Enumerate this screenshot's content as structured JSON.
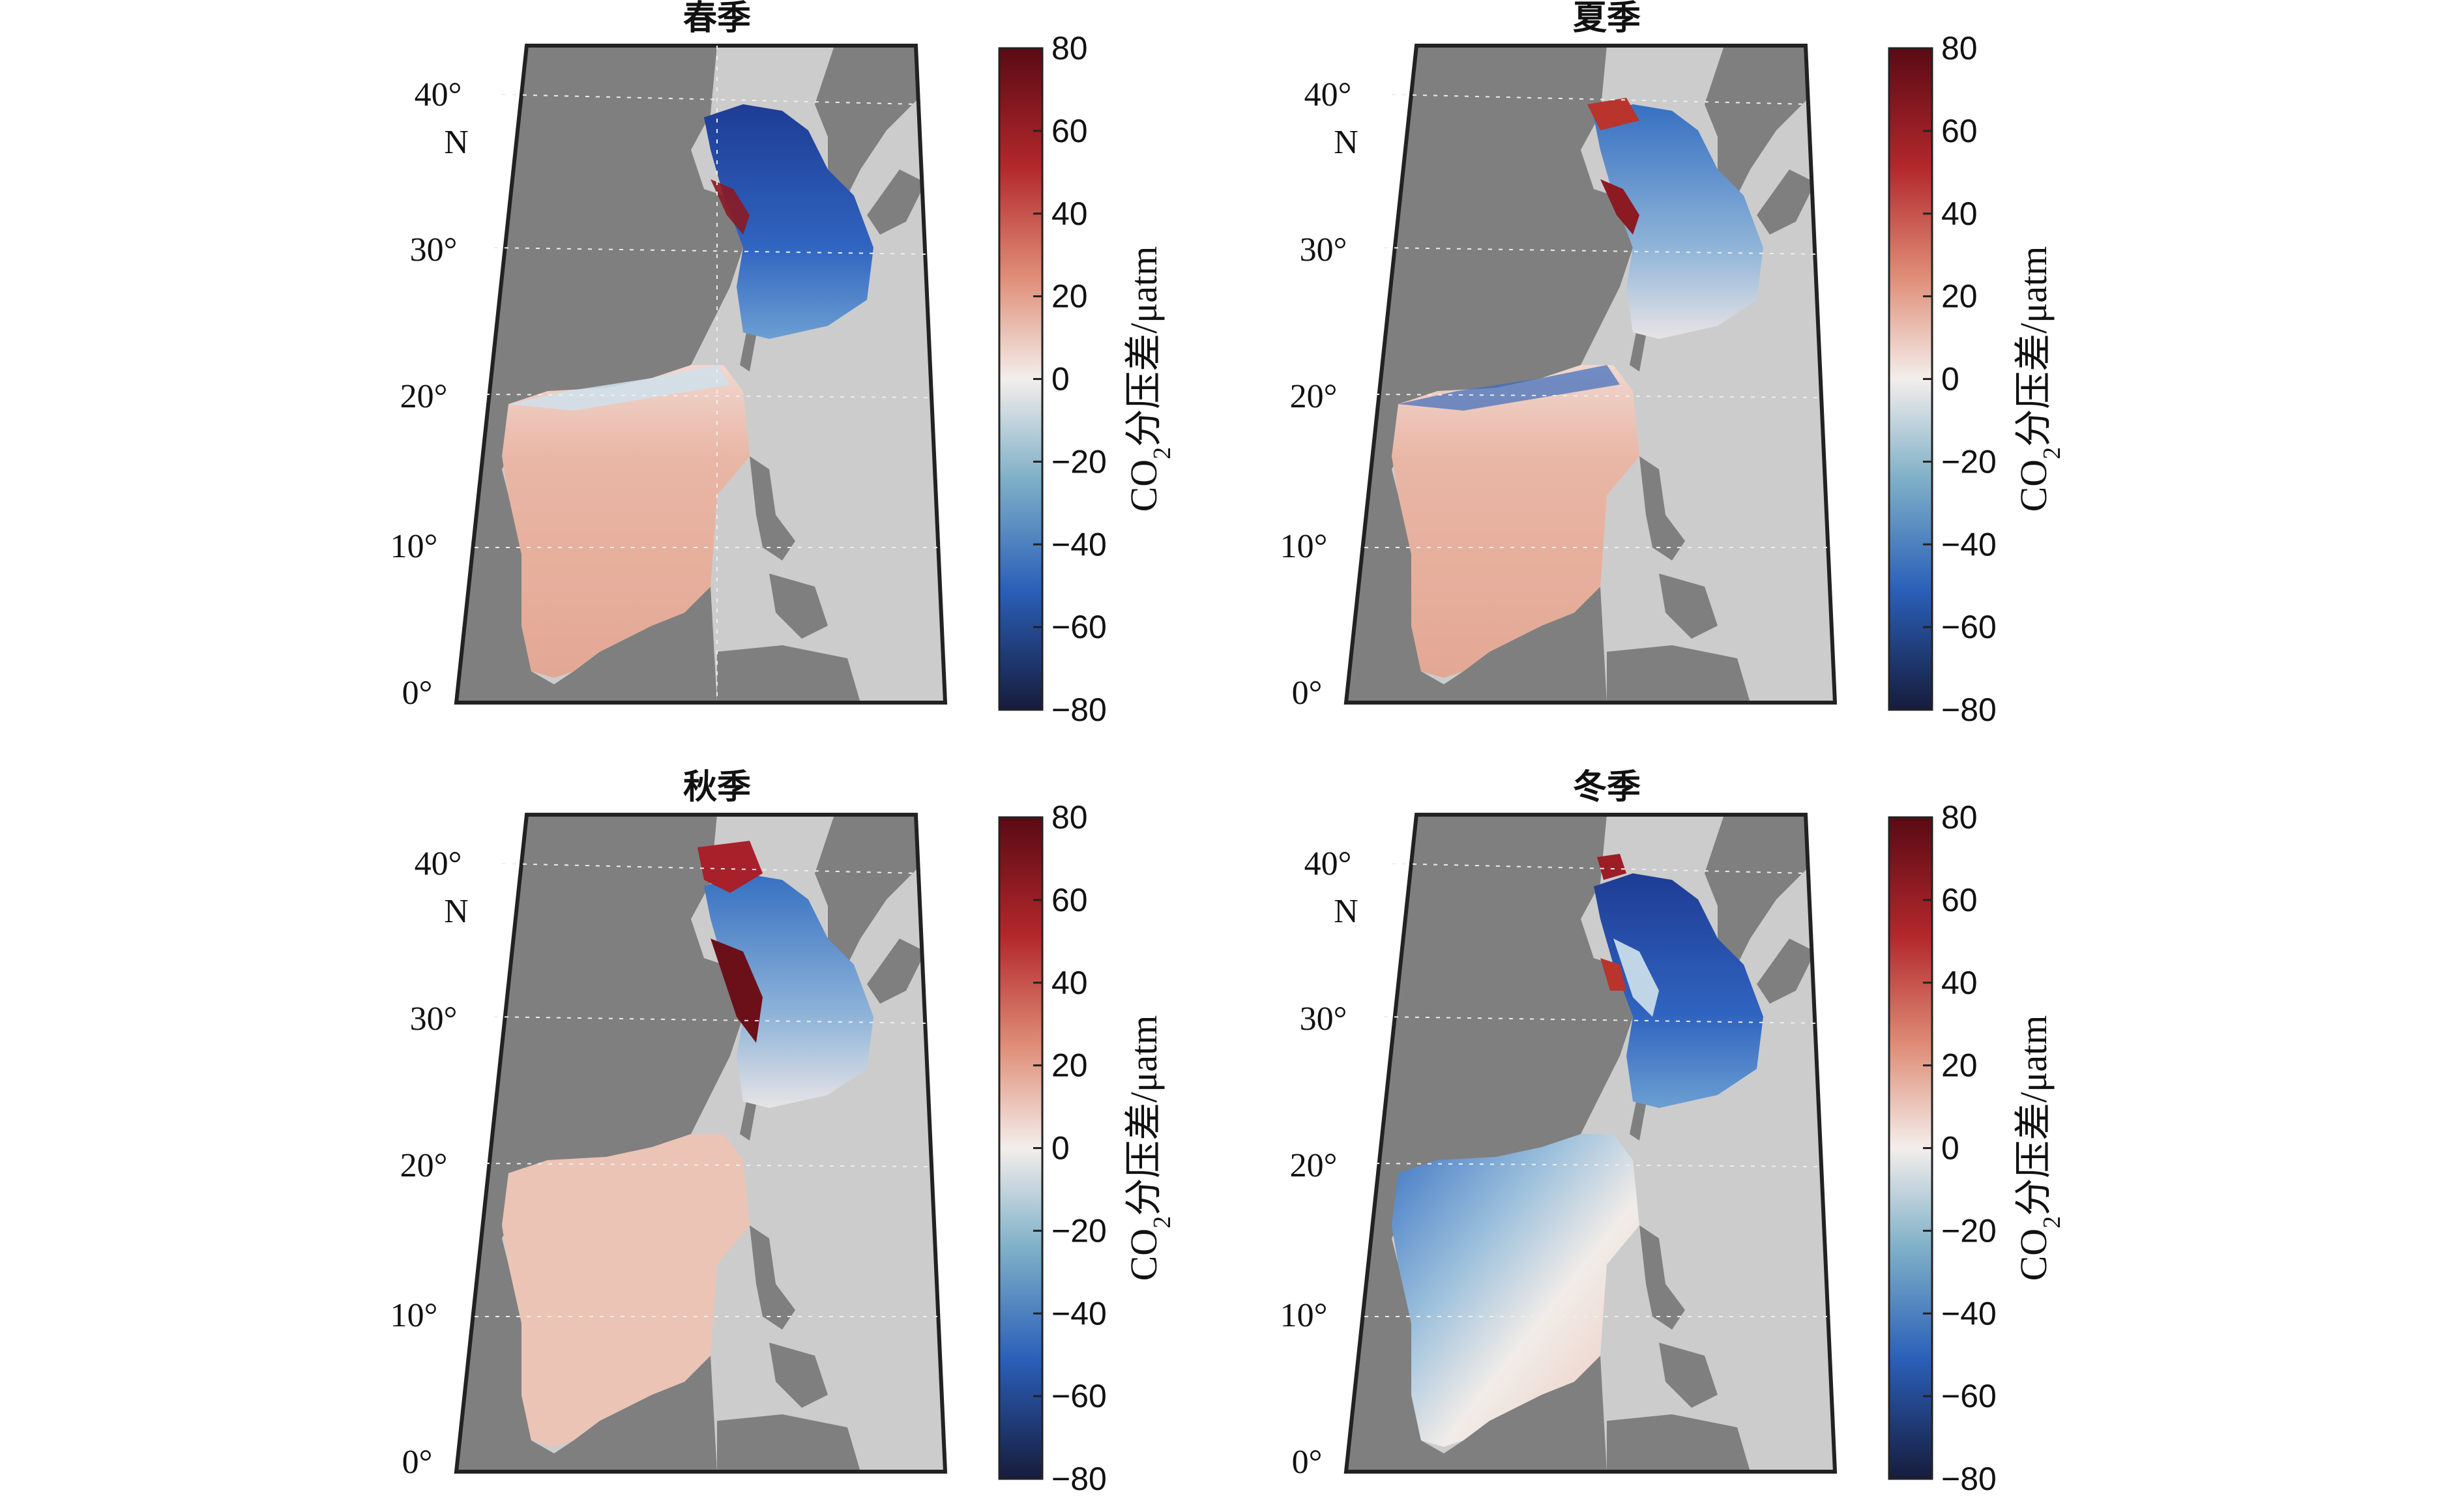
{
  "panels": [
    {
      "title": "春季"
    },
    {
      "title": "夏季"
    },
    {
      "title": "秋季"
    },
    {
      "title": "冬季"
    }
  ],
  "lat_labels": [
    "40°",
    "N",
    "30°",
    "20°",
    "10°",
    "0°"
  ],
  "colorbar": {
    "ticks": [
      "80",
      "60",
      "40",
      "20",
      "0",
      "−20",
      "−40",
      "−60",
      "−80"
    ],
    "label_prefix": "CO",
    "label_sub": "2",
    "label_suffix": "分压差/μatm",
    "colors": {
      "max": "#5a0a14",
      "mid": "#f3eeeb",
      "min": "#161c3c"
    }
  },
  "colors": {
    "land": "#7f7f7f",
    "ocean_mask": "#cccccc",
    "frame": "#222222"
  }
}
